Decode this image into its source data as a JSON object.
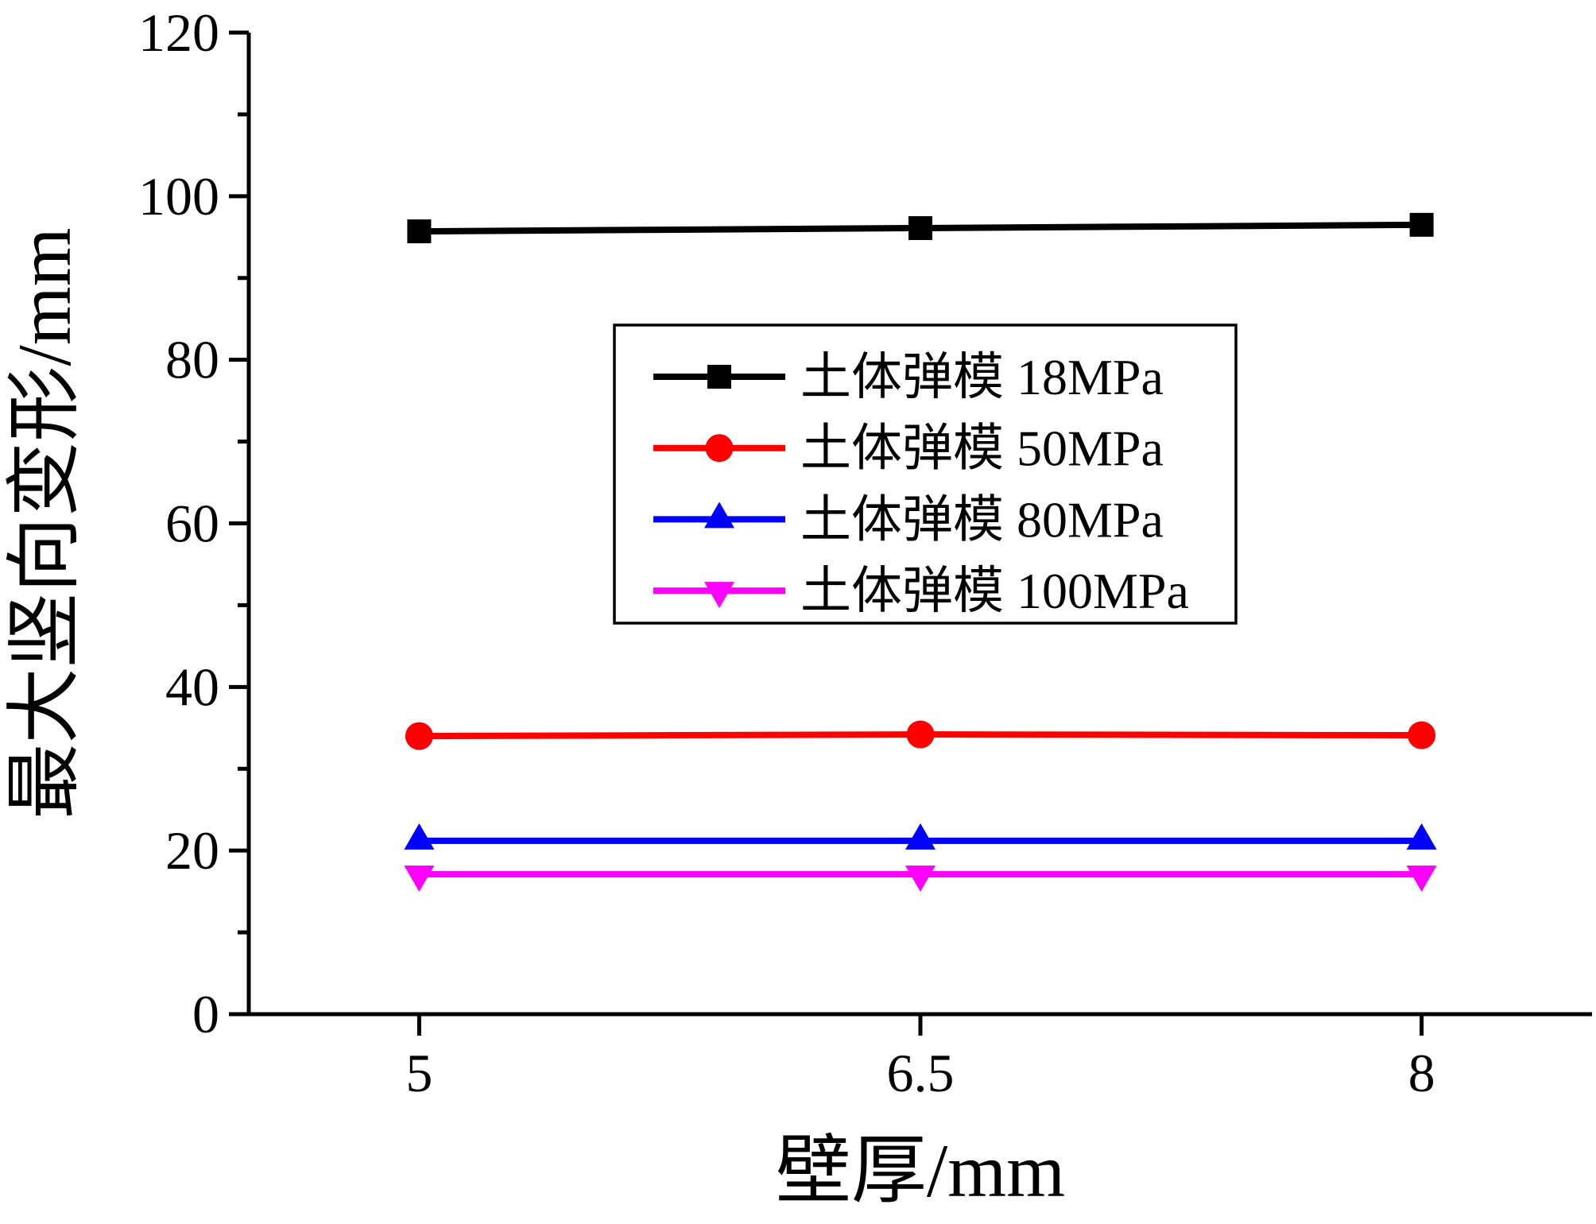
{
  "figure": {
    "background": "#ffffff",
    "axis_color": "#000000"
  },
  "chart_data": {
    "type": "line",
    "title": "",
    "xlabel": "壁厚/mm",
    "ylabel": "最大竖向变形/mm",
    "x": [
      5,
      6.5,
      8
    ],
    "xtick_labels": [
      "5",
      "6.5",
      "8"
    ],
    "xlim": [
      4.49,
      8.51
    ],
    "ylim": [
      0,
      120
    ],
    "ytick_major_step": 20,
    "ytick_minor_step": 10,
    "ytick_labels": [
      "0",
      "20",
      "40",
      "60",
      "80",
      "100",
      "120"
    ],
    "grid": false,
    "legend_position": "upper-center-inside",
    "series": [
      {
        "name": "土体弹模 18MPa",
        "color": "#000000",
        "marker": "square",
        "values": [
          95.7,
          96.1,
          96.5
        ]
      },
      {
        "name": "土体弹模 50MPa",
        "color": "#ff0000",
        "marker": "circle",
        "values": [
          34.0,
          34.2,
          34.1
        ]
      },
      {
        "name": "土体弹模 80MPa",
        "color": "#0000ff",
        "marker": "triangle-up",
        "values": [
          21.2,
          21.2,
          21.2
        ]
      },
      {
        "name": "土体弹模 100MPa",
        "color": "#ff00ff",
        "marker": "triangle-down",
        "values": [
          17.1,
          17.1,
          17.1
        ]
      }
    ]
  }
}
